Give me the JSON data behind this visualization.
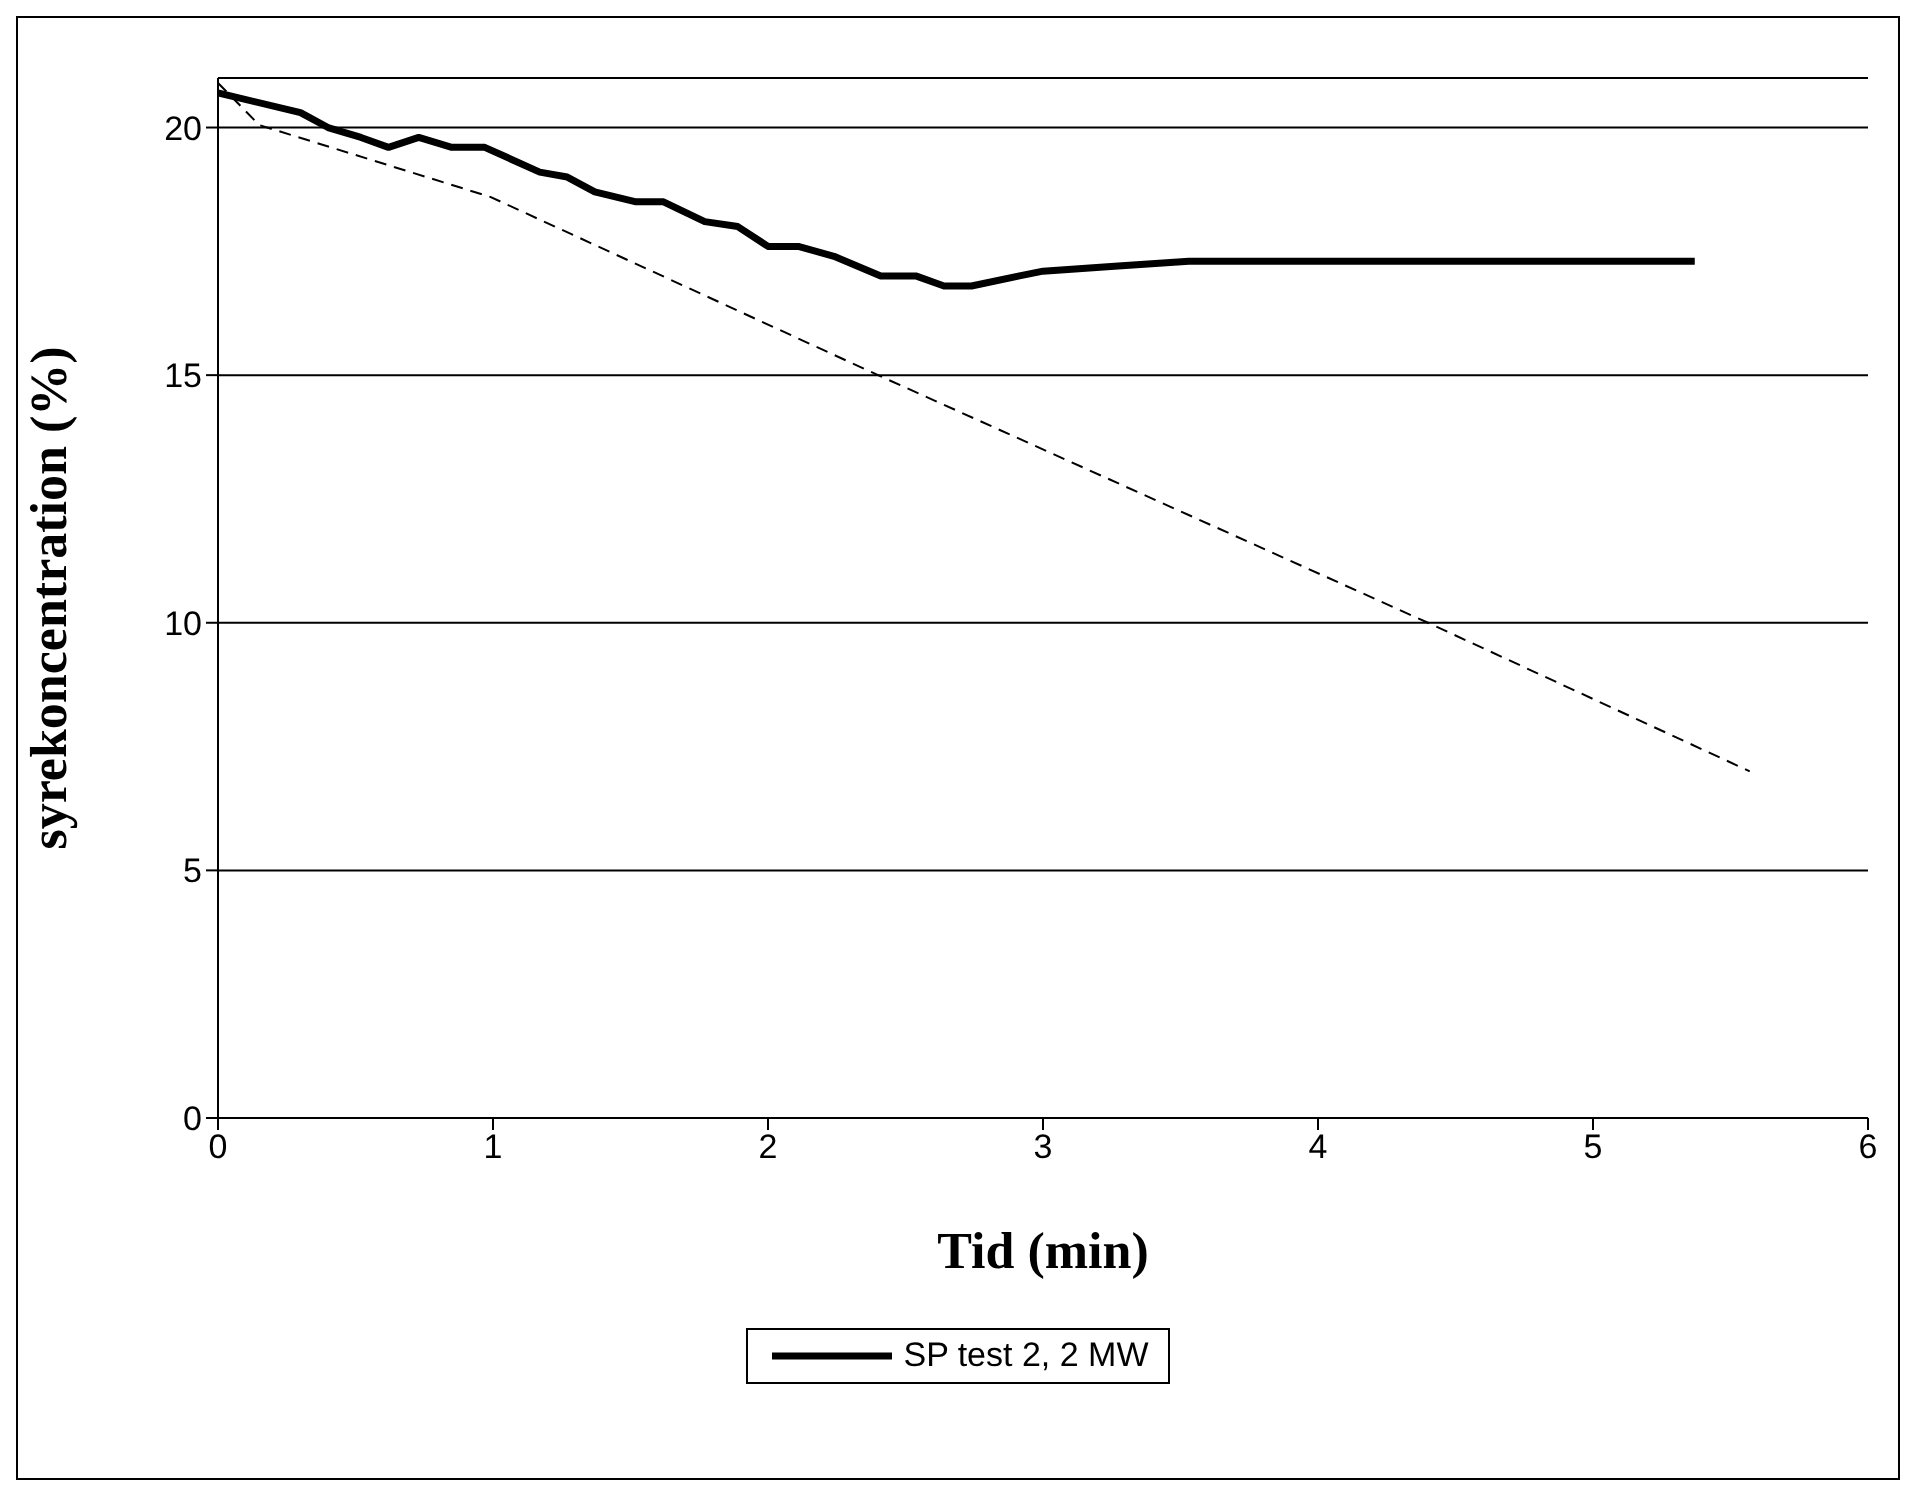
{
  "chart_data": {
    "type": "line",
    "xlabel": "Tid (min)",
    "ylabel": "syrekoncentration (%)",
    "xlim": [
      0,
      6
    ],
    "xticks": [
      0,
      1,
      2,
      3,
      4,
      5,
      6
    ],
    "ylim": [
      0,
      21
    ],
    "yticks": [
      0,
      5,
      10,
      15,
      20
    ],
    "grid": "y",
    "legend": "bottom",
    "marker": "none",
    "series": [
      {
        "name": "SP test 2, 2 MW",
        "color": "#000000",
        "line_style": "solid",
        "x": [
          0,
          0.3,
          0.4,
          0.52,
          0.62,
          0.73,
          0.85,
          0.97,
          1.17,
          1.27,
          1.37,
          1.52,
          1.62,
          1.77,
          1.89,
          2.0,
          2.11,
          2.24,
          2.41,
          2.54,
          2.64,
          2.74,
          2.91,
          3.0,
          3.26,
          3.53,
          4.18,
          4.21,
          5.37
        ],
        "values": [
          20.7,
          20.3,
          20.0,
          19.8,
          19.6,
          19.8,
          19.6,
          19.6,
          19.1,
          19.0,
          18.7,
          18.5,
          18.5,
          18.1,
          18.0,
          17.6,
          17.6,
          17.4,
          17.0,
          17.0,
          16.8,
          16.8,
          17.0,
          17.1,
          17.2,
          17.3,
          17.3,
          17.3,
          17.3
        ]
      },
      {
        "color": "#000000",
        "line_style": "dashed",
        "x": [
          0,
          0.15,
          0.99,
          2.4,
          4.4,
          5.57
        ],
        "values": [
          20.9,
          20.05,
          18.6,
          15.0,
          10.0,
          7.0
        ]
      }
    ]
  }
}
